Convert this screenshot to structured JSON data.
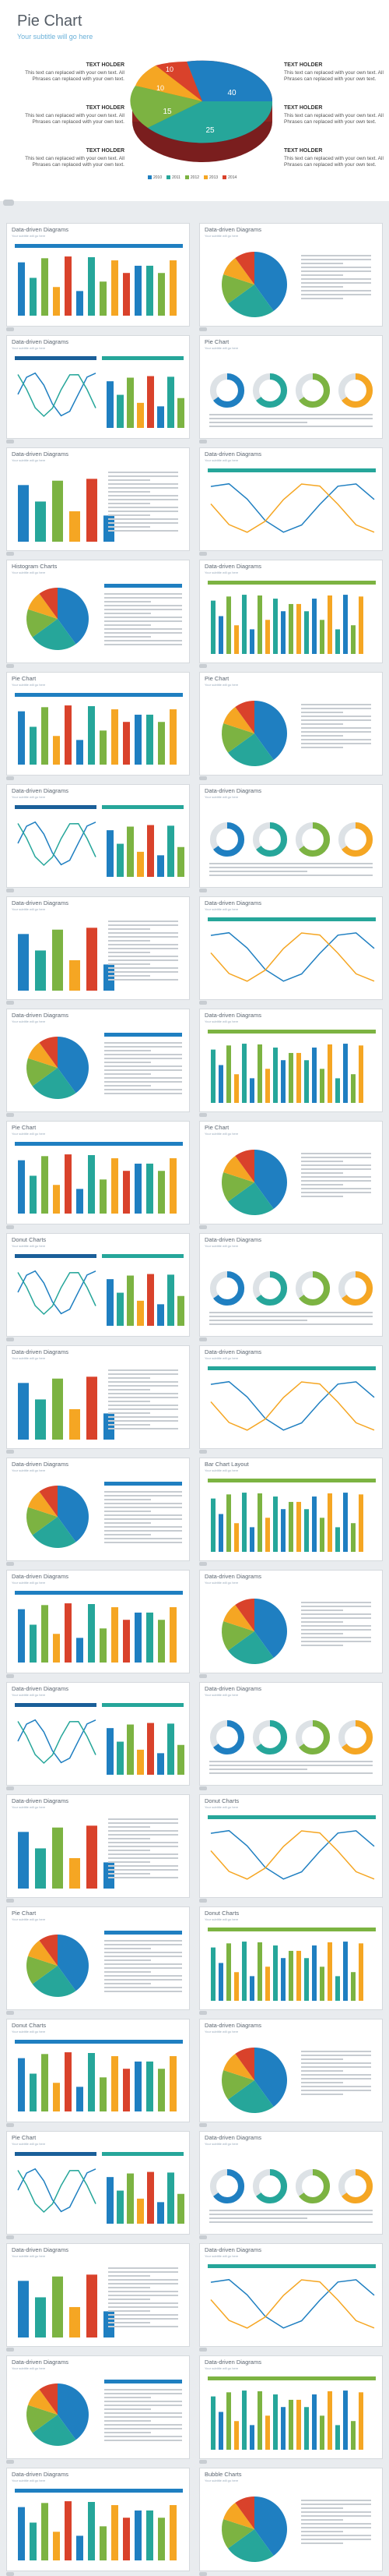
{
  "hero": {
    "title": "Pie Chart",
    "subtitle": "Your subtitle will go here",
    "holders_left": [
      {
        "heading": "TEXT HOLDER",
        "body": "This text can replaced with your own text. All Phrases can replaced with your own text."
      },
      {
        "heading": "TEXT HOLDER",
        "body": "This text can replaced with your own text. All Phrases can replaced with your own text."
      },
      {
        "heading": "TEXT HOLDER",
        "body": "This text can replaced with your own text. All Phrases can replaced with your own text."
      }
    ],
    "holders_right": [
      {
        "heading": "TEXT HOLDER",
        "body": "This text can replaced with your own text. All Phrases can replaced with your own text."
      },
      {
        "heading": "TEXT HOLDER",
        "body": "This text can replaced with your own text. All Phrases can replaced with your own text."
      },
      {
        "heading": "TEXT HOLDER",
        "body": "This text can replaced with your own text. All Phrases can replaced with your own text."
      }
    ],
    "pie_labels": [
      "40",
      "25",
      "10",
      "10",
      "15"
    ],
    "legend": [
      "2010",
      "2011",
      "2012",
      "2013",
      "2014"
    ]
  },
  "slides": [
    "Data-driven Diagrams",
    "Data-driven Diagrams",
    "Data-driven Diagrams",
    "Pie Chart",
    "Data-driven Diagrams",
    "Data-driven Diagrams",
    "Histogram Charts",
    "Data-driven Diagrams",
    "Pie Chart",
    "Pie Chart",
    "Data-driven Diagrams",
    "Data-driven Diagrams",
    "Data-driven Diagrams",
    "Data-driven Diagrams",
    "Data-driven Diagrams",
    "Data-driven Diagrams",
    "Pie Chart",
    "Pie Chart",
    "Donut Charts",
    "Data-driven Diagrams",
    "Data-driven Diagrams",
    "Data-driven Diagrams",
    "Data-driven Diagrams",
    "Bar Chart Layout",
    "Data-driven Diagrams",
    "Data-driven Diagrams",
    "Data-driven Diagrams",
    "Data-driven Diagrams",
    "Data-driven Diagrams",
    "Donut Charts",
    "Pie Chart",
    "Donut Charts",
    "Donut Charts",
    "Data-driven Diagrams",
    "Pie Chart",
    "Data-driven Diagrams",
    "Data-driven Diagrams",
    "Data-driven Diagrams",
    "Data-driven Diagrams",
    "Data-driven Diagrams",
    "Data-driven Diagrams",
    "Bubble Charts"
  ],
  "slide_subtitle": "Your subtitle will go here",
  "colors": {
    "blue": "#1f7fc1",
    "teal": "#26a69a",
    "green": "#7cb342",
    "orange": "#f5a623",
    "red": "#d9422b",
    "gray": "#c8cdd2",
    "navy": "#1a5f99"
  }
}
